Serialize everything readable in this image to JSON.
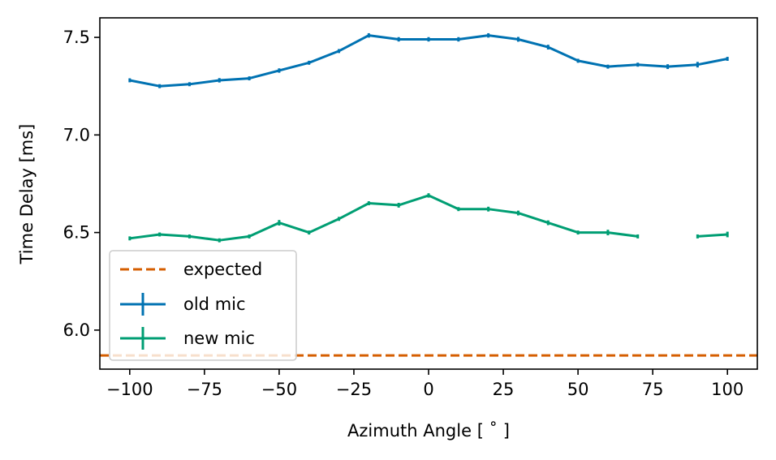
{
  "chart_data": {
    "type": "line",
    "xlabel": "Azimuth Angle [$^\\circ$]",
    "xlabel_display": "Azimuth Angle [ ˚ ]",
    "ylabel": "Time Delay [ms]",
    "xlim": [
      -110,
      110
    ],
    "ylim": [
      5.8,
      7.6
    ],
    "xticks": [
      -100,
      -75,
      -50,
      -25,
      0,
      25,
      50,
      75,
      100
    ],
    "xtick_labels": [
      "−100",
      "−75",
      "−50",
      "−25",
      "0",
      "25",
      "50",
      "75",
      "100"
    ],
    "yticks": [
      6.0,
      6.5,
      7.0,
      7.5
    ],
    "ytick_labels": [
      "6.0",
      "6.5",
      "7.0",
      "7.5"
    ],
    "grid": false,
    "legend_position": "lower-left",
    "reference_line": {
      "name": "expected",
      "y": 5.87,
      "color": "#d55e00",
      "style": "dashed"
    },
    "series": [
      {
        "name": "old mic",
        "color": "#0072b2",
        "x": [
          -100,
          -90,
          -80,
          -70,
          -60,
          -50,
          -40,
          -30,
          -20,
          -10,
          0,
          10,
          20,
          30,
          40,
          50,
          60,
          70,
          80,
          90,
          100
        ],
        "values": [
          7.28,
          7.25,
          7.26,
          7.28,
          7.29,
          7.33,
          7.37,
          7.43,
          7.51,
          7.49,
          7.49,
          7.49,
          7.51,
          7.49,
          7.45,
          7.38,
          7.35,
          7.36,
          7.35,
          7.36,
          7.39
        ],
        "errors": [
          0.004,
          0.004,
          0.004,
          0.005,
          0.004,
          0.005,
          0.004,
          0.004,
          0.005,
          0.005,
          0.005,
          0.005,
          0.005,
          0.006,
          0.006,
          0.004,
          0.004,
          0.004,
          0.006,
          0.008,
          0.004
        ]
      },
      {
        "name": "new mic",
        "color": "#009e73",
        "x": [
          -100,
          -90,
          -80,
          -70,
          -60,
          -50,
          -40,
          -30,
          -20,
          -10,
          0,
          10,
          20,
          30,
          40,
          50,
          60,
          70,
          null,
          90,
          100
        ],
        "values": [
          6.47,
          6.49,
          6.48,
          6.46,
          6.48,
          6.55,
          6.5,
          6.57,
          6.65,
          6.64,
          6.69,
          6.62,
          6.62,
          6.6,
          6.55,
          6.5,
          6.5,
          6.48,
          null,
          6.48,
          6.49
        ],
        "errors": [
          0.004,
          0.004,
          0.004,
          0.004,
          0.004,
          0.008,
          0.004,
          0.004,
          0.004,
          0.006,
          0.005,
          0.004,
          0.006,
          0.006,
          0.006,
          0.004,
          0.008,
          0.004,
          null,
          0.004,
          0.008
        ]
      }
    ]
  }
}
